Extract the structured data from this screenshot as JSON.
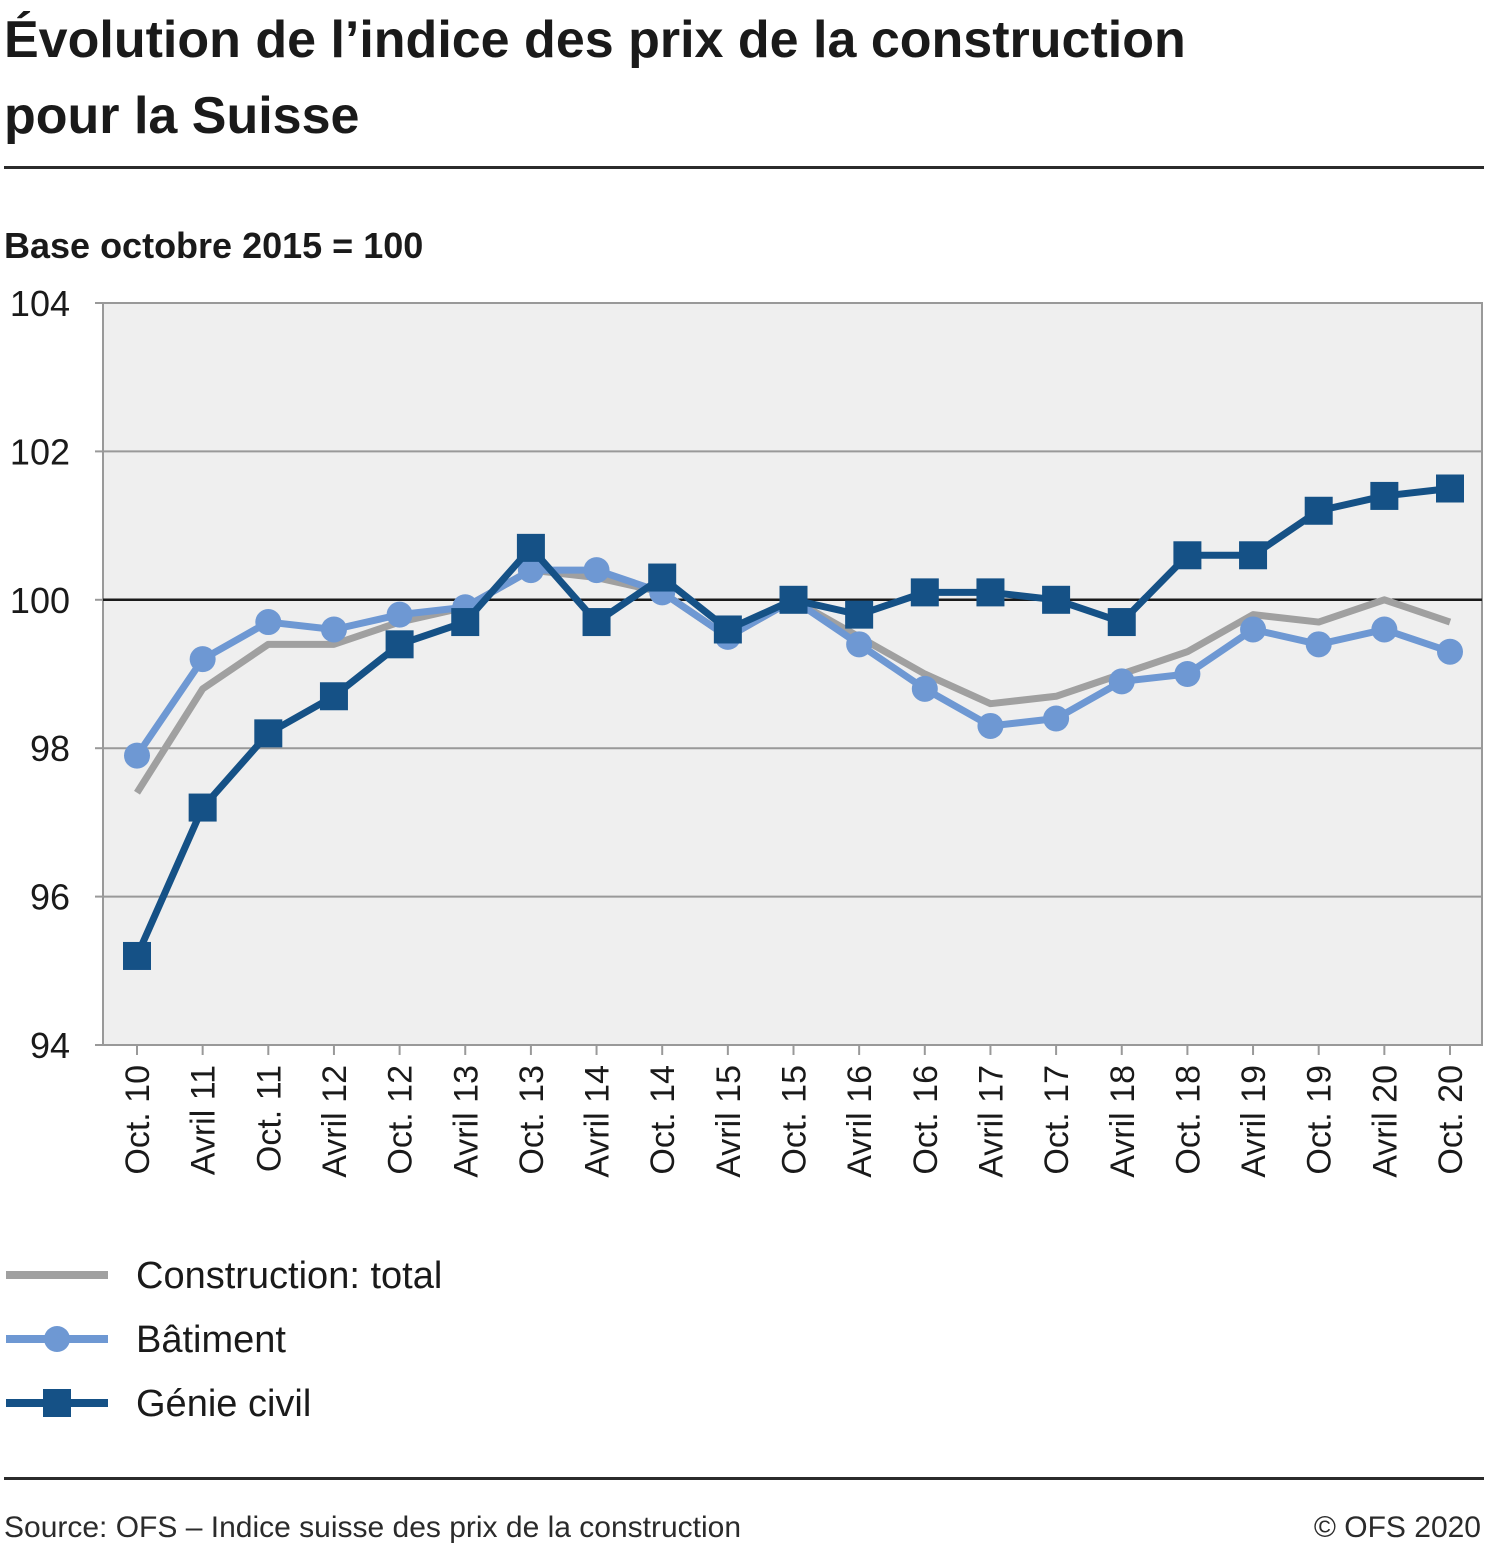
{
  "header": {
    "title_line1": "Évolution de l’indice des prix de la construction",
    "title_line2": "pour la Suisse",
    "subtitle": "Base octobre 2015 = 100"
  },
  "footer": {
    "source": "Source: OFS – Indice suisse des prix de la construction",
    "copyright": "© OFS 2020"
  },
  "chart_data": {
    "type": "line",
    "categories": [
      "Oct. 10",
      "Avril 11",
      "Oct. 11",
      "Avril 12",
      "Oct. 12",
      "Avril 13",
      "Oct. 13",
      "Avril 14",
      "Oct. 14",
      "Avril 15",
      "Oct. 15",
      "Avril 16",
      "Oct. 16",
      "Avril 17",
      "Oct. 17",
      "Avril 18",
      "Oct. 18",
      "Avril 19",
      "Oct. 19",
      "Avril 20",
      "Oct. 20"
    ],
    "ylim": [
      94,
      104
    ],
    "yticks": [
      94,
      96,
      98,
      100,
      102,
      104
    ],
    "reference_line": 100,
    "grid": true,
    "legend_position": "bottom",
    "colors": {
      "plot_bg": "#efefef",
      "grid": "#999999",
      "axis": "#999999",
      "reference": "#1a1a1a"
    },
    "series": [
      {
        "name": "Construction: total",
        "color": "#a0a0a0",
        "marker": "none",
        "values": [
          97.4,
          98.8,
          99.4,
          99.4,
          99.7,
          99.9,
          100.4,
          100.3,
          100.1,
          99.5,
          100.0,
          99.5,
          99.0,
          98.6,
          98.7,
          99.0,
          99.3,
          99.8,
          99.7,
          100.0,
          99.7
        ]
      },
      {
        "name": "Bâtiment",
        "color": "#6e98d3",
        "marker": "circle",
        "values": [
          97.9,
          99.2,
          99.7,
          99.6,
          99.8,
          99.9,
          100.4,
          100.4,
          100.1,
          99.5,
          100.0,
          99.4,
          98.8,
          98.3,
          98.4,
          98.9,
          99.0,
          99.6,
          99.4,
          99.6,
          99.3
        ]
      },
      {
        "name": "Génie civil",
        "color": "#155186",
        "marker": "square",
        "values": [
          95.2,
          97.2,
          98.2,
          98.7,
          99.4,
          99.7,
          100.7,
          99.7,
          100.3,
          99.6,
          100.0,
          99.8,
          100.1,
          100.1,
          100.0,
          99.7,
          100.6,
          100.6,
          101.2,
          101.4,
          101.5
        ]
      }
    ]
  }
}
